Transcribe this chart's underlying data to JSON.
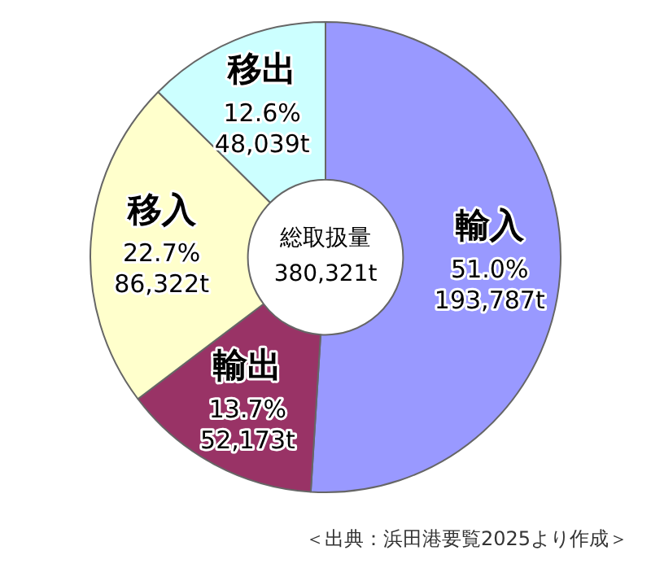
{
  "chart_data": {
    "type": "donut",
    "categories": [
      "輸入",
      "輸出",
      "移入",
      "移出"
    ],
    "values": [
      51.0,
      13.7,
      22.7,
      12.6
    ],
    "value_labels": [
      "51.0%\n193,787t",
      "13.7%\n52,173t",
      "22.7%\n86,322t",
      "12.6%\n48,039t"
    ],
    "colors": [
      "#9999ff",
      "#993366",
      "#ffffcc",
      "#ccffff"
    ],
    "annotations": [
      "総取扱量\n380,321t",
      "＜出典：浜田港要覧2025より作成＞"
    ],
    "legend": false
  }
}
